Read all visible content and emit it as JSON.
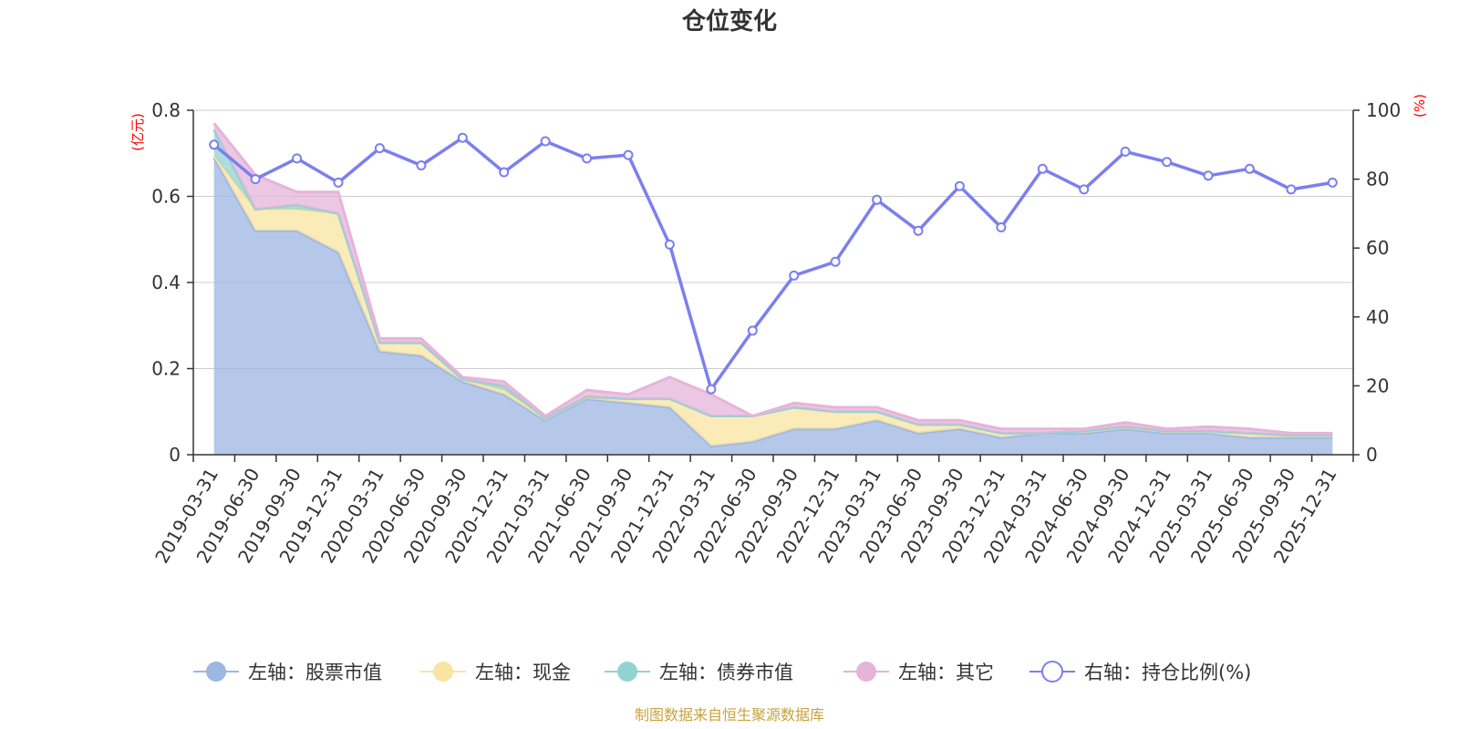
{
  "chart_data": {
    "type": "area",
    "title": "仓位变化",
    "left_axis_unit": "(亿元)",
    "right_axis_unit": "(%)",
    "left_ylim": [
      0,
      0.8
    ],
    "left_yticks": [
      "0",
      "0.2",
      "0.4",
      "0.6",
      "0.8"
    ],
    "right_ylim": [
      0,
      100
    ],
    "right_yticks": [
      "0",
      "20",
      "40",
      "60",
      "80",
      "100"
    ],
    "grid": true,
    "legend_position": "bottom",
    "categories": [
      "2019-03-31",
      "2019-06-30",
      "2019-09-30",
      "2019-12-31",
      "2020-03-31",
      "2020-06-30",
      "2020-09-30",
      "2020-12-31",
      "2021-03-31",
      "2021-06-30",
      "2021-09-30",
      "2021-12-31",
      "2022-03-31",
      "2022-06-30",
      "2022-09-30",
      "2022-12-31",
      "2023-03-31",
      "2023-06-30",
      "2023-09-30",
      "2023-12-31",
      "2024-03-31",
      "2024-06-30",
      "2024-09-30",
      "2024-12-31",
      "2025-03-31",
      "2025-06-30",
      "2025-09-30",
      "2025-12-31"
    ],
    "series": [
      {
        "name": "左轴：股票市值",
        "axis": "left",
        "color": "#9db6e2",
        "values": [
          0.69,
          0.52,
          0.52,
          0.47,
          0.24,
          0.23,
          0.17,
          0.14,
          0.08,
          0.13,
          0.12,
          0.11,
          0.02,
          0.03,
          0.06,
          0.06,
          0.08,
          0.05,
          0.06,
          0.04,
          0.05,
          0.05,
          0.06,
          0.05,
          0.05,
          0.04,
          0.04,
          0.04
        ]
      },
      {
        "name": "左轴：现金",
        "axis": "left",
        "color": "#fae4a1",
        "values": [
          0.005,
          0.05,
          0.05,
          0.09,
          0.02,
          0.03,
          0.005,
          0.01,
          0.005,
          0.005,
          0.01,
          0.02,
          0.07,
          0.06,
          0.05,
          0.04,
          0.02,
          0.02,
          0.01,
          0.01,
          0.0,
          0.005,
          0.005,
          0.005,
          0.005,
          0.01,
          0.005,
          0.005
        ]
      },
      {
        "name": "左轴：债券市值",
        "axis": "left",
        "color": "#93d2d3",
        "values": [
          0.06,
          0.0,
          0.01,
          0.0,
          0.0,
          0.0,
          0.0,
          0.01,
          0.0,
          0.0,
          0.0,
          0.0,
          0.0,
          0.0,
          0.0,
          0.0,
          0.0,
          0.0,
          0.0,
          0.0,
          0.0,
          0.0,
          0.0,
          0.0,
          0.0,
          0.0,
          0.0,
          0.0
        ]
      },
      {
        "name": "左轴：其它",
        "axis": "left",
        "color": "#e6b4d9",
        "values": [
          0.015,
          0.08,
          0.03,
          0.05,
          0.01,
          0.01,
          0.005,
          0.01,
          0.005,
          0.015,
          0.01,
          0.05,
          0.05,
          0.0,
          0.01,
          0.01,
          0.01,
          0.01,
          0.01,
          0.01,
          0.01,
          0.005,
          0.01,
          0.005,
          0.01,
          0.01,
          0.005,
          0.005
        ]
      },
      {
        "name": "右轴：持仓比例(%)",
        "axis": "right",
        "type": "line",
        "color": "#7b7fef",
        "values": [
          90,
          80,
          86,
          79,
          89,
          84,
          92,
          82,
          91,
          86,
          87,
          61,
          19,
          36,
          52,
          56,
          74,
          65,
          78,
          66,
          83,
          77,
          88,
          85,
          81,
          83,
          77,
          79
        ]
      }
    ]
  },
  "footer": {
    "source": "制图数据来自恒生聚源数据库"
  }
}
